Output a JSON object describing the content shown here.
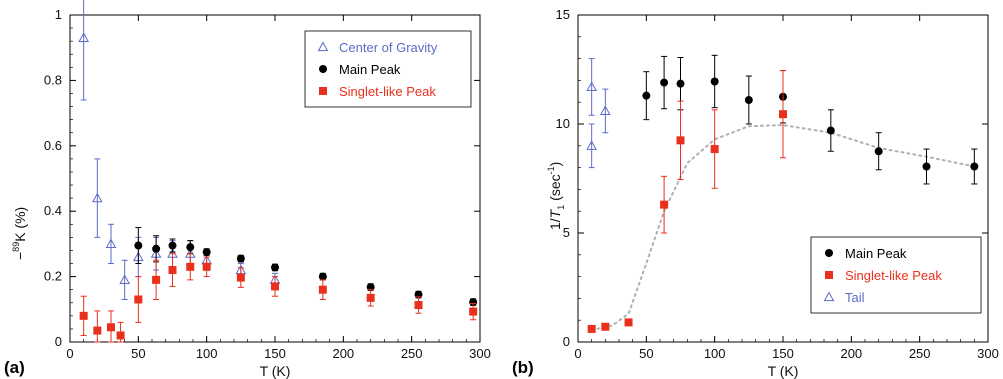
{
  "chart_data": [
    {
      "type": "scatter",
      "panel_label": "(a)",
      "xlabel": "T (K)",
      "ylabel_sup": "89",
      "ylabel_text": "K (%)",
      "xlim": [
        0,
        300
      ],
      "ylim": [
        0,
        1
      ],
      "xticks": [
        0,
        50,
        100,
        150,
        200,
        250,
        300
      ],
      "yticks": [
        0,
        0.2,
        0.4,
        0.6,
        0.8,
        1
      ],
      "ytick_labels": [
        "0",
        "0.2",
        "0.4",
        "0.6",
        "0.8",
        "1"
      ],
      "grid": false,
      "legend_position": "top-right",
      "series": [
        {
          "name": "Center of Gravity",
          "marker": "triangle-open",
          "color": "#5b6bc8",
          "points": [
            {
              "x": 10,
              "y": 0.93,
              "err": 0.19
            },
            {
              "x": 20,
              "y": 0.44,
              "err": 0.12
            },
            {
              "x": 30,
              "y": 0.3,
              "err": 0.06
            },
            {
              "x": 40,
              "y": 0.19,
              "err": 0.06
            },
            {
              "x": 50,
              "y": 0.26,
              "err": 0.06
            },
            {
              "x": 63,
              "y": 0.27,
              "err": 0.05
            },
            {
              "x": 75,
              "y": 0.27,
              "err": 0.04
            },
            {
              "x": 88,
              "y": 0.27,
              "err": 0.04
            },
            {
              "x": 100,
              "y": 0.25,
              "err": 0.03
            },
            {
              "x": 125,
              "y": 0.22,
              "err": 0.02
            },
            {
              "x": 150,
              "y": 0.19,
              "err": 0.02
            }
          ]
        },
        {
          "name": "Main Peak",
          "marker": "circle-filled",
          "color": "#000000",
          "points": [
            {
              "x": 50,
              "y": 0.295,
              "err": 0.055
            },
            {
              "x": 63,
              "y": 0.285,
              "err": 0.04
            },
            {
              "x": 75,
              "y": 0.295,
              "err": 0.02
            },
            {
              "x": 88,
              "y": 0.29,
              "err": 0.02
            },
            {
              "x": 100,
              "y": 0.275,
              "err": 0.01
            },
            {
              "x": 125,
              "y": 0.255,
              "err": 0.01
            },
            {
              "x": 150,
              "y": 0.228,
              "err": 0.01
            },
            {
              "x": 185,
              "y": 0.2,
              "err": 0.01
            },
            {
              "x": 220,
              "y": 0.168,
              "err": 0.01
            },
            {
              "x": 255,
              "y": 0.145,
              "err": 0.01
            },
            {
              "x": 295,
              "y": 0.122,
              "err": 0.01
            }
          ]
        },
        {
          "name": "Singlet-like Peak",
          "marker": "square-filled",
          "color": "#e8301c",
          "points": [
            {
              "x": 10,
              "y": 0.08,
              "err": 0.06
            },
            {
              "x": 20,
              "y": 0.035,
              "err": 0.06
            },
            {
              "x": 30,
              "y": 0.045,
              "err": 0.05
            },
            {
              "x": 37,
              "y": 0.02,
              "err": 0.04
            },
            {
              "x": 50,
              "y": 0.13,
              "err": 0.07
            },
            {
              "x": 63,
              "y": 0.19,
              "err": 0.06
            },
            {
              "x": 75,
              "y": 0.22,
              "err": 0.05
            },
            {
              "x": 88,
              "y": 0.23,
              "err": 0.04
            },
            {
              "x": 100,
              "y": 0.23,
              "err": 0.03
            },
            {
              "x": 125,
              "y": 0.197,
              "err": 0.03
            },
            {
              "x": 150,
              "y": 0.17,
              "err": 0.03
            },
            {
              "x": 185,
              "y": 0.16,
              "err": 0.03
            },
            {
              "x": 220,
              "y": 0.135,
              "err": 0.025
            },
            {
              "x": 255,
              "y": 0.113,
              "err": 0.025
            },
            {
              "x": 295,
              "y": 0.093,
              "err": 0.025
            }
          ]
        }
      ]
    },
    {
      "type": "scatter",
      "panel_label": "(b)",
      "xlabel": "T (K)",
      "ylabel_pre": "1/",
      "ylabel_italic": "T",
      "ylabel_sub": "1",
      "ylabel_unit": " (sec",
      "ylabel_unit_sup": "-1",
      "ylabel_close": ")",
      "xlim": [
        0,
        300
      ],
      "ylim": [
        0,
        15
      ],
      "xticks": [
        0,
        50,
        100,
        150,
        200,
        250,
        300
      ],
      "yticks": [
        0,
        5,
        10,
        15
      ],
      "ytick_labels": [
        "0",
        "5",
        "10",
        "15"
      ],
      "grid": false,
      "legend_position": "bottom-right",
      "series": [
        {
          "name": "Main Peak",
          "marker": "circle-filled",
          "color": "#000000",
          "points": [
            {
              "x": 50,
              "y": 11.3,
              "err": 1.1
            },
            {
              "x": 63,
              "y": 11.9,
              "err": 1.2
            },
            {
              "x": 75,
              "y": 11.85,
              "err": 1.2
            },
            {
              "x": 100,
              "y": 11.95,
              "err": 1.2
            },
            {
              "x": 125,
              "y": 11.1,
              "err": 1.1
            },
            {
              "x": 150,
              "y": 11.25,
              "err": 1.2
            },
            {
              "x": 185,
              "y": 9.7,
              "err": 0.95
            },
            {
              "x": 220,
              "y": 8.75,
              "err": 0.85
            },
            {
              "x": 255,
              "y": 8.05,
              "err": 0.8
            },
            {
              "x": 290,
              "y": 8.05,
              "err": 0.8
            }
          ]
        },
        {
          "name": "Singlet-like Peak",
          "marker": "square-filled",
          "color": "#e8301c",
          "points": [
            {
              "x": 10,
              "y": 0.6,
              "err": 0.1
            },
            {
              "x": 20,
              "y": 0.7,
              "err": 0.1
            },
            {
              "x": 37,
              "y": 0.9,
              "err": 0.15
            },
            {
              "x": 63,
              "y": 6.3,
              "err": 1.3
            },
            {
              "x": 75,
              "y": 9.25,
              "err": 1.8
            },
            {
              "x": 100,
              "y": 8.85,
              "err": 1.8
            },
            {
              "x": 150,
              "y": 10.45,
              "err": 2.0
            }
          ]
        },
        {
          "name": "Tail",
          "marker": "triangle-open",
          "color": "#5b6bc8",
          "points": [
            {
              "x": 10,
              "y": 11.7,
              "err": 1.3
            },
            {
              "x": 10,
              "y": 9.0,
              "err": 1.0
            },
            {
              "x": 20,
              "y": 10.6,
              "err": 1.0
            }
          ]
        }
      ],
      "guide_curve": {
        "style": "dotted",
        "color": "#b0b0b0",
        "points": [
          [
            10,
            0.55
          ],
          [
            25,
            0.75
          ],
          [
            37,
            1.3
          ],
          [
            50,
            3.6
          ],
          [
            63,
            6.0
          ],
          [
            80,
            8.2
          ],
          [
            100,
            9.3
          ],
          [
            125,
            9.9
          ],
          [
            150,
            9.95
          ],
          [
            185,
            9.6
          ],
          [
            220,
            8.9
          ],
          [
            255,
            8.5
          ],
          [
            290,
            8.05
          ]
        ]
      }
    }
  ]
}
